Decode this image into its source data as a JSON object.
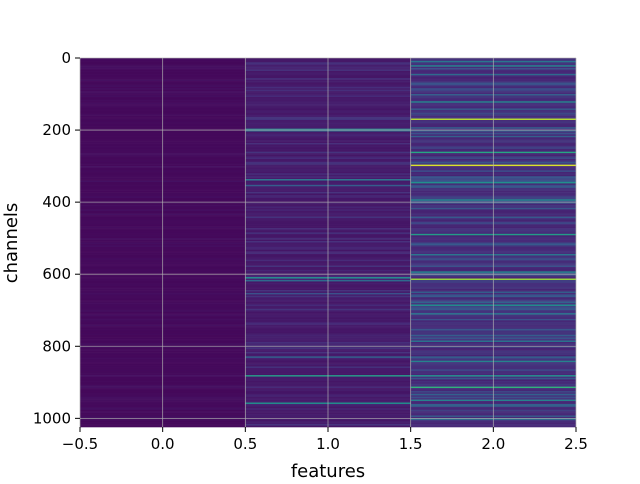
{
  "chart_data": {
    "type": "heatmap",
    "title": "",
    "xlabel": "features",
    "ylabel": "channels",
    "xlim": [
      -0.5,
      2.5
    ],
    "ylim": [
      1024,
      0
    ],
    "y_inverted": true,
    "grid": true,
    "colormap": "viridis",
    "n_rows": 1024,
    "x_ticks": [
      -0.5,
      0.0,
      0.5,
      1.0,
      1.5,
      2.0,
      2.5
    ],
    "x_tick_labels": [
      "−0.5",
      "0.0",
      "0.5",
      "1.0",
      "1.5",
      "2.0",
      "2.5"
    ],
    "y_ticks": [
      0,
      200,
      400,
      600,
      800,
      1000
    ],
    "y_tick_labels": [
      "0",
      "200",
      "400",
      "600",
      "800",
      "1000"
    ],
    "columns": [
      {
        "feature": 0,
        "baseline": 0.02,
        "noise": 0.03,
        "highlights": []
      },
      {
        "feature": 1,
        "baseline": 0.06,
        "noise": 0.1,
        "highlights": [
          {
            "channel": 196,
            "value": 0.45
          },
          {
            "channel": 200,
            "value": 0.38
          },
          {
            "channel": 337,
            "value": 0.42
          },
          {
            "channel": 352,
            "value": 0.3
          },
          {
            "channel": 610,
            "value": 0.5
          },
          {
            "channel": 618,
            "value": 0.35
          },
          {
            "channel": 655,
            "value": 0.25
          },
          {
            "channel": 830,
            "value": 0.32
          },
          {
            "channel": 880,
            "value": 0.55
          },
          {
            "channel": 958,
            "value": 0.5
          }
        ]
      },
      {
        "feature": 2,
        "baseline": 0.1,
        "noise": 0.22,
        "highlights": [
          {
            "channel": 8,
            "value": 0.4
          },
          {
            "channel": 20,
            "value": 0.45
          },
          {
            "channel": 45,
            "value": 0.35
          },
          {
            "channel": 120,
            "value": 0.45
          },
          {
            "channel": 170,
            "value": 0.9
          },
          {
            "channel": 262,
            "value": 0.6
          },
          {
            "channel": 296,
            "value": 0.95
          },
          {
            "channel": 345,
            "value": 0.5
          },
          {
            "channel": 395,
            "value": 0.45
          },
          {
            "channel": 490,
            "value": 0.55
          },
          {
            "channel": 545,
            "value": 0.4
          },
          {
            "channel": 592,
            "value": 0.45
          },
          {
            "channel": 612,
            "value": 0.7
          },
          {
            "channel": 615,
            "value": 0.85
          },
          {
            "channel": 685,
            "value": 0.5
          },
          {
            "channel": 710,
            "value": 0.4
          },
          {
            "channel": 785,
            "value": 0.4
          },
          {
            "channel": 840,
            "value": 0.45
          },
          {
            "channel": 880,
            "value": 0.5
          },
          {
            "channel": 912,
            "value": 0.65
          },
          {
            "channel": 950,
            "value": 0.45
          },
          {
            "channel": 1000,
            "value": 0.4
          }
        ]
      }
    ]
  }
}
